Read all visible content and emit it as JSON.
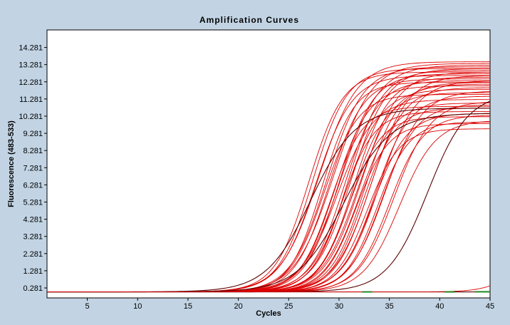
{
  "chart_data": {
    "type": "line",
    "title": "Amplification Curves",
    "xlabel": "Cycles",
    "ylabel": "Fluorescence (483-533)",
    "xlim": [
      1,
      45
    ],
    "ylim": [
      -0.3,
      15.3
    ],
    "x_ticks": [
      5,
      10,
      15,
      20,
      25,
      30,
      35,
      40,
      45
    ],
    "y_ticks": [
      0.281,
      1.281,
      2.281,
      3.281,
      4.281,
      5.281,
      6.281,
      7.281,
      8.281,
      9.281,
      10.281,
      11.281,
      12.281,
      13.281,
      14.281
    ],
    "y_tick_labels": [
      "0.281",
      "1.281",
      "2.281",
      "3.281",
      "4.281",
      "5.281",
      "6.281",
      "7.281",
      "8.281",
      "9.281",
      "10.281",
      "11.281",
      "12.281",
      "13.281",
      "14.281"
    ],
    "grid": false,
    "legend": "none",
    "baseline": 0.05,
    "colors": {
      "background": "#c2d4e4",
      "plot_area": "#ffffff",
      "main_curves": "#dd0000",
      "dark_curves": "#5a0000",
      "negative_controls": "#228b22"
    },
    "curve_model": "sigmoid: baseline + plateau / (1 + exp(-(x - ct) / slope))",
    "main_curves": [
      {
        "ct": 27.0,
        "plateau": 12.8,
        "slope": 1.7
      },
      {
        "ct": 27.4,
        "plateau": 13.0,
        "slope": 1.7
      },
      {
        "ct": 27.7,
        "plateau": 12.6,
        "slope": 1.8
      },
      {
        "ct": 28.0,
        "plateau": 13.4,
        "slope": 1.9
      },
      {
        "ct": 28.3,
        "plateau": 12.2,
        "slope": 1.6
      },
      {
        "ct": 28.5,
        "plateau": 11.5,
        "slope": 1.7
      },
      {
        "ct": 28.8,
        "plateau": 13.1,
        "slope": 1.8
      },
      {
        "ct": 29.0,
        "plateau": 12.4,
        "slope": 1.7
      },
      {
        "ct": 29.2,
        "plateau": 10.8,
        "slope": 1.6
      },
      {
        "ct": 29.4,
        "plateau": 13.3,
        "slope": 1.9
      },
      {
        "ct": 29.6,
        "plateau": 12.0,
        "slope": 1.7
      },
      {
        "ct": 29.8,
        "plateau": 11.2,
        "slope": 1.8
      },
      {
        "ct": 30.0,
        "plateau": 12.7,
        "slope": 1.7
      },
      {
        "ct": 30.2,
        "plateau": 13.2,
        "slope": 1.9
      },
      {
        "ct": 30.3,
        "plateau": 10.5,
        "slope": 1.6
      },
      {
        "ct": 30.5,
        "plateau": 12.3,
        "slope": 1.7
      },
      {
        "ct": 30.7,
        "plateau": 11.8,
        "slope": 1.8
      },
      {
        "ct": 30.9,
        "plateau": 12.9,
        "slope": 1.7
      },
      {
        "ct": 31.0,
        "plateau": 10.2,
        "slope": 1.6
      },
      {
        "ct": 31.2,
        "plateau": 13.0,
        "slope": 1.8
      },
      {
        "ct": 31.4,
        "plateau": 11.6,
        "slope": 1.7
      },
      {
        "ct": 31.5,
        "plateau": 12.5,
        "slope": 1.7
      },
      {
        "ct": 31.7,
        "plateau": 9.8,
        "slope": 1.6
      },
      {
        "ct": 31.9,
        "plateau": 12.1,
        "slope": 1.8
      },
      {
        "ct": 32.0,
        "plateau": 11.0,
        "slope": 1.7
      },
      {
        "ct": 32.2,
        "plateau": 12.8,
        "slope": 1.8
      },
      {
        "ct": 32.4,
        "plateau": 10.7,
        "slope": 1.6
      },
      {
        "ct": 32.6,
        "plateau": 12.2,
        "slope": 1.7
      },
      {
        "ct": 32.8,
        "plateau": 9.5,
        "slope": 1.6
      },
      {
        "ct": 33.0,
        "plateau": 11.9,
        "slope": 1.7
      },
      {
        "ct": 33.2,
        "plateau": 12.6,
        "slope": 1.8
      },
      {
        "ct": 33.4,
        "plateau": 10.4,
        "slope": 1.7
      },
      {
        "ct": 33.6,
        "plateau": 11.4,
        "slope": 1.7
      },
      {
        "ct": 33.8,
        "plateau": 9.9,
        "slope": 1.6
      },
      {
        "ct": 34.0,
        "plateau": 12.3,
        "slope": 1.8
      },
      {
        "ct": 34.3,
        "plateau": 10.9,
        "slope": 1.7
      },
      {
        "ct": 34.6,
        "plateau": 11.7,
        "slope": 1.8
      },
      {
        "ct": 35.0,
        "plateau": 10.3,
        "slope": 1.7
      },
      {
        "ct": 35.5,
        "plateau": 11.1,
        "slope": 1.8
      },
      {
        "ct": 36.0,
        "plateau": 10.0,
        "slope": 1.8
      }
    ],
    "dark_curves": [
      {
        "ct": 27.2,
        "plateau": 10.7,
        "slope": 2.2
      },
      {
        "ct": 30.5,
        "plateau": 10.4,
        "slope": 2.3
      },
      {
        "ct": 38.8,
        "plateau": 11.6,
        "slope": 2.0
      }
    ],
    "late_rise_curve": {
      "ct": 48.0,
      "plateau": 3.0,
      "slope": 1.5
    },
    "negative_controls": [
      {
        "x": [
          32.3,
          33.3
        ],
        "y": [
          0.05,
          0.05
        ]
      },
      {
        "x": [
          40.5,
          41.5
        ],
        "y": [
          0.05,
          0.05
        ]
      },
      {
        "x": [
          43.5,
          45.0
        ],
        "y": [
          0.06,
          0.06
        ]
      }
    ]
  }
}
